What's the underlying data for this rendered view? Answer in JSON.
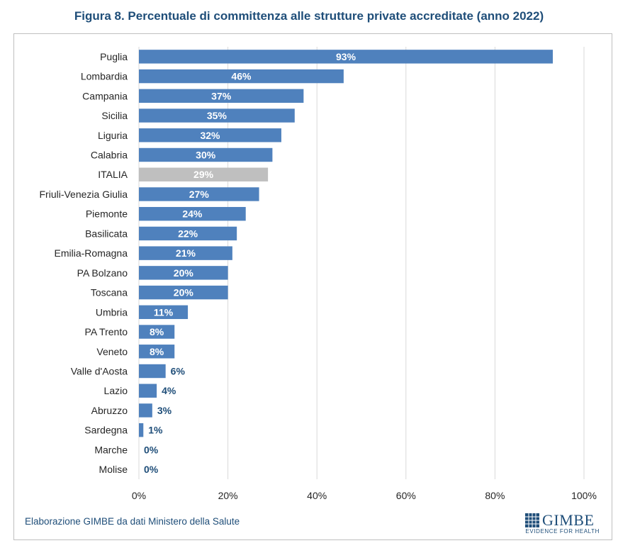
{
  "title": "Figura 8. Percentuale di committenza alle strutture private accreditate (anno 2022)",
  "source": "Elaborazione GIMBE da dati Ministero della Salute",
  "logo": {
    "name": "GIMBE",
    "tagline": "EVIDENCE FOR HEALTH"
  },
  "colors": {
    "bar": "#4f81bd",
    "highlight": "#bfbfbf",
    "label_outside": "#1f4e79",
    "title": "#1f4e79"
  },
  "chart_data": {
    "type": "bar",
    "orientation": "horizontal",
    "title": "Figura 8. Percentuale di committenza alle strutture private accreditate (anno 2022)",
    "xlabel": "",
    "ylabel": "",
    "xlim": [
      0,
      100
    ],
    "x_ticks": [
      "0%",
      "20%",
      "40%",
      "60%",
      "80%",
      "100%"
    ],
    "grid": "vertical",
    "legend": "none",
    "highlight_category": "ITALIA",
    "categories": [
      "Puglia",
      "Lombardia",
      "Campania",
      "Sicilia",
      "Liguria",
      "Calabria",
      "ITALIA",
      "Friuli-Venezia Giulia",
      "Piemonte",
      "Basilicata",
      "Emilia-Romagna",
      "PA Bolzano",
      "Toscana",
      "Umbria",
      "PA Trento",
      "Veneto",
      "Valle d'Aosta",
      "Lazio",
      "Abruzzo",
      "Sardegna",
      "Marche",
      "Molise"
    ],
    "values": [
      93,
      46,
      37,
      35,
      32,
      30,
      29,
      27,
      24,
      22,
      21,
      20,
      20,
      11,
      8,
      8,
      6,
      4,
      3,
      1,
      0,
      0
    ],
    "labels": [
      "93%",
      "46%",
      "37%",
      "35%",
      "32%",
      "30%",
      "29%",
      "27%",
      "24%",
      "22%",
      "21%",
      "20%",
      "20%",
      "11%",
      "8%",
      "8%",
      "6%",
      "4%",
      "3%",
      "1%",
      "0%",
      "0%"
    ]
  }
}
